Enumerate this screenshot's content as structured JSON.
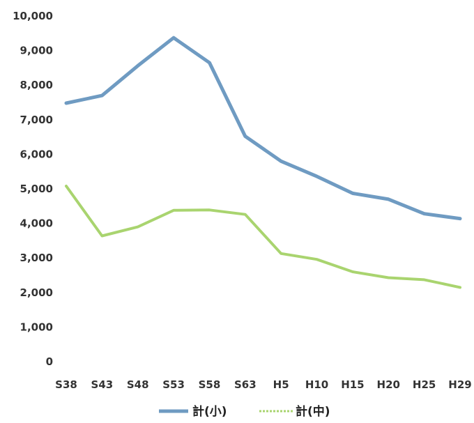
{
  "chart_data": {
    "type": "line",
    "categories": [
      "S38",
      "S43",
      "S48",
      "S53",
      "S58",
      "S63",
      "H5",
      "H10",
      "H15",
      "H20",
      "H25",
      "H29"
    ],
    "ylim": [
      0,
      10000
    ],
    "yticks": [
      "0",
      "1,000",
      "2,000",
      "3,000",
      "4,000",
      "5,000",
      "6,000",
      "7,000",
      "8,000",
      "9,000",
      "10,000"
    ],
    "grid": false,
    "legend_position": "bottom",
    "series": [
      {
        "name": "計(小)",
        "color": "#6f9bc2",
        "values": [
          7480,
          7700,
          8560,
          9370,
          8650,
          6520,
          5800,
          5360,
          4870,
          4700,
          4280,
          4140
        ]
      },
      {
        "name": "計(中)",
        "color": "#a9d46f",
        "values": [
          5080,
          3640,
          3900,
          4380,
          4390,
          4260,
          3130,
          2960,
          2600,
          2430,
          2370,
          2150
        ]
      }
    ]
  }
}
